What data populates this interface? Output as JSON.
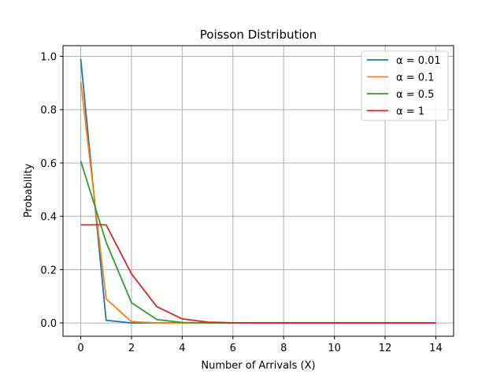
{
  "chart_data": {
    "type": "line",
    "title": "Poisson Distribution",
    "xlabel": "Number of Arrivals (X)",
    "ylabel": "Probability",
    "xlim": [
      -0.7,
      14.7
    ],
    "ylim": [
      -0.05,
      1.04
    ],
    "xticks": [
      0,
      2,
      4,
      6,
      8,
      10,
      12,
      14
    ],
    "yticks": [
      0.0,
      0.2,
      0.4,
      0.6,
      0.8,
      1.0
    ],
    "xtick_labels": [
      "0",
      "2",
      "4",
      "6",
      "8",
      "10",
      "12",
      "14"
    ],
    "ytick_labels": [
      "0.0",
      "0.2",
      "0.4",
      "0.6",
      "0.8",
      "1.0"
    ],
    "grid": true,
    "legend_position": "top-right",
    "x": [
      0,
      1,
      2,
      3,
      4,
      5,
      6,
      7,
      8,
      9,
      10,
      11,
      12,
      13,
      14
    ],
    "series": [
      {
        "name": "α = 0.01",
        "color": "#1f77b4",
        "values": [
          0.99,
          0.0099,
          5e-05,
          0,
          0,
          0,
          0,
          0,
          0,
          0,
          0,
          0,
          0,
          0,
          0
        ]
      },
      {
        "name": "α = 0.1",
        "color": "#ff7f0e",
        "values": [
          0.905,
          0.0905,
          0.0045,
          0.00015,
          0,
          0,
          0,
          0,
          0,
          0,
          0,
          0,
          0,
          0,
          0
        ]
      },
      {
        "name": "α = 0.5",
        "color": "#2ca02c",
        "values": [
          0.607,
          0.303,
          0.076,
          0.0126,
          0.0016,
          0.00016,
          1e-05,
          0,
          0,
          0,
          0,
          0,
          0,
          0,
          0
        ]
      },
      {
        "name": "α = 1",
        "color": "#d62728",
        "values": [
          0.368,
          0.368,
          0.184,
          0.061,
          0.0153,
          0.0031,
          0.0005,
          7e-05,
          1e-05,
          0,
          0,
          0,
          0,
          0,
          0
        ]
      }
    ]
  }
}
